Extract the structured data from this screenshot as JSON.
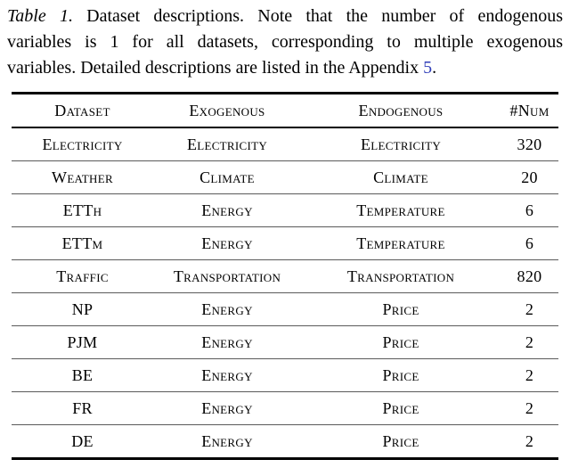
{
  "caption": {
    "label": "Table 1.",
    "line1_rest": " Dataset descriptions. Note that the number of endogenous",
    "line2": "variables is 1 for all datasets, corresponding to multiple exogenous",
    "line3_pre": "variables. Detailed descriptions are listed in the Appendix ",
    "link_text": "5",
    "line3_post": "."
  },
  "table": {
    "columns": [
      "Dataset",
      "Exogenous",
      "Endogenous",
      "#Num"
    ],
    "rows": [
      [
        "Electricity",
        "Electricity",
        "Electricity",
        "320"
      ],
      [
        "Weather",
        "Climate",
        "Climate",
        "20"
      ],
      [
        "ETTh",
        "Energy",
        "Temperature",
        "6"
      ],
      [
        "ETTm",
        "Energy",
        "Temperature",
        "6"
      ],
      [
        "Traffic",
        "Transportation",
        "Transportation",
        "820"
      ],
      [
        "NP",
        "Energy",
        "Price",
        "2"
      ],
      [
        "PJM",
        "Energy",
        "Price",
        "2"
      ],
      [
        "BE",
        "Energy",
        "Price",
        "2"
      ],
      [
        "FR",
        "Energy",
        "Price",
        "2"
      ],
      [
        "DE",
        "Energy",
        "Price",
        "2"
      ]
    ]
  },
  "colors": {
    "link_blue": "#2f3db8",
    "rule_black": "#000000",
    "row_separator_gray": "#5a5a5a",
    "background": "#ffffff"
  }
}
